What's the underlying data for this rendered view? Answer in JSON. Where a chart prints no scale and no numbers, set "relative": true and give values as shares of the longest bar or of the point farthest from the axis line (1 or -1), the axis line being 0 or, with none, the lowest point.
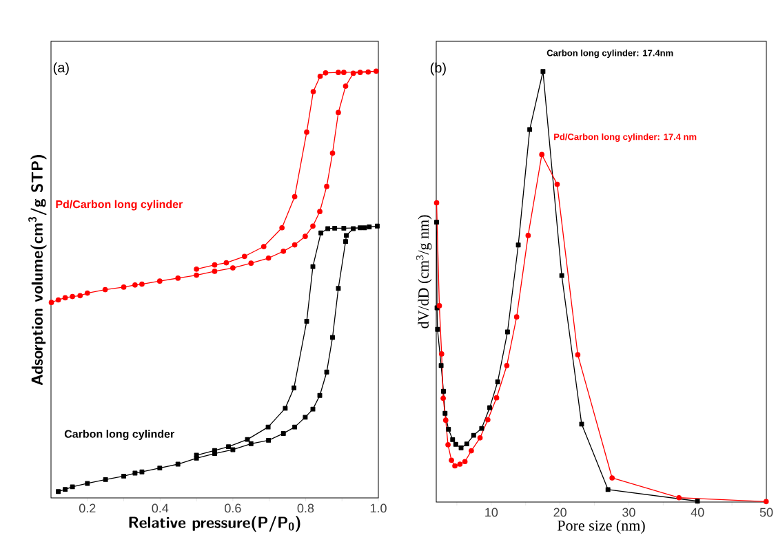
{
  "chart_data": [
    {
      "type": "line",
      "relative": true,
      "xlabel": "Relative pressure(P/P$_{0}$)",
      "ylabel": "Adsorption volume(cm$^{3}$/g STP)",
      "annotations": [
        "(a)"
      ],
      "xlim": [
        0.1,
        1.0
      ],
      "xticks": [
        0.2,
        {
          "value": 0.3,
          "label": null
        },
        0.4,
        {
          "value": 0.5,
          "label": null
        },
        0.6,
        {
          "value": 0.7,
          "label": null
        },
        0.8,
        {
          "value": 0.9,
          "label": null
        },
        {
          "value": 1.0,
          "label": "1.0"
        }
      ],
      "tick_labels": "x",
      "legend": false,
      "grid": false,
      "series": [
        {
          "name": "Carbon long cylinder",
          "color": "#000000",
          "marker": "square",
          "x": [
            0.12,
            0.139,
            0.159,
            0.2,
            0.25,
            0.3,
            0.331,
            0.35,
            0.399,
            0.449,
            0.5,
            0.55,
            0.6,
            0.65,
            0.698,
            0.739,
            0.77,
            0.799,
            0.82,
            0.839,
            0.858,
            0.874,
            0.89,
            0.91,
            0.912,
            0.931,
            0.95,
            0.975,
            0.997,
            0.962,
            0.905,
            0.88,
            0.861,
            0.842,
            0.82,
            0.803,
            0.768,
            0.744,
            0.697,
            0.64,
            0.588,
            0.55,
            0.5
          ],
          "values": [
            0.015,
            0.02,
            0.026,
            0.034,
            0.043,
            0.051,
            0.058,
            0.061,
            0.07,
            0.079,
            0.093,
            0.104,
            0.113,
            0.127,
            0.135,
            0.151,
            0.166,
            0.189,
            0.208,
            0.24,
            0.295,
            0.376,
            0.491,
            0.601,
            0.615,
            0.631,
            0.633,
            0.635,
            0.637,
            0.633,
            0.632,
            0.632,
            0.631,
            0.621,
            0.542,
            0.414,
            0.258,
            0.21,
            0.166,
            0.137,
            0.12,
            0.111,
            0.1
          ]
        },
        {
          "name": "Pd/Carbon long cylinder",
          "color": "#ff0000",
          "marker": "circle",
          "x": [
            0.101,
            0.12,
            0.139,
            0.159,
            0.18,
            0.2,
            0.249,
            0.3,
            0.331,
            0.35,
            0.399,
            0.449,
            0.5,
            0.55,
            0.6,
            0.65,
            0.698,
            0.739,
            0.77,
            0.799,
            0.82,
            0.839,
            0.858,
            0.874,
            0.89,
            0.91,
            0.931,
            0.95,
            0.972,
            0.994,
            0.905,
            0.89,
            0.855,
            0.84,
            0.821,
            0.803,
            0.77,
            0.735,
            0.685,
            0.632,
            0.582,
            0.55,
            0.5
          ],
          "values": [
            0.458,
            0.464,
            0.469,
            0.472,
            0.474,
            0.48,
            0.488,
            0.494,
            0.499,
            0.501,
            0.508,
            0.515,
            0.522,
            0.531,
            0.539,
            0.55,
            0.562,
            0.578,
            0.593,
            0.613,
            0.637,
            0.671,
            0.73,
            0.808,
            0.903,
            0.965,
            0.995,
            0.997,
            0.998,
            1.0,
            0.997,
            0.997,
            0.996,
            0.988,
            0.952,
            0.857,
            0.706,
            0.633,
            0.589,
            0.566,
            0.551,
            0.546,
            0.536
          ]
        }
      ]
    },
    {
      "type": "line",
      "relative": true,
      "xlabel": "Pore size (nm)",
      "ylabel": "dV/dD (cm$^{3}$/g nm)",
      "annotations": [
        "(b)"
      ],
      "xlim": [
        2,
        50
      ],
      "xticks": [
        {
          "value": 5,
          "label": null
        },
        10,
        {
          "value": 15,
          "label": null
        },
        20,
        {
          "value": 25,
          "label": null
        },
        30,
        {
          "value": 35,
          "label": null
        },
        40,
        {
          "value": 45,
          "label": null
        },
        50
      ],
      "tick_labels": "x",
      "legend": false,
      "grid": false,
      "series": [
        {
          "name": "Carbon long cylinder: 17.4nm",
          "color": "#000000",
          "marker": "square",
          "x": [
            2.05,
            2.11,
            2.18,
            2.71,
            3.05,
            3.28,
            3.78,
            4.38,
            4.84,
            5.61,
            6.44,
            7.44,
            8.6,
            9.77,
            10.93,
            12.36,
            13.93,
            15.59,
            17.52,
            20.25,
            23.14,
            26.97,
            39.98
          ],
          "values": [
            0.65,
            0.451,
            0.401,
            0.317,
            0.257,
            0.206,
            0.169,
            0.145,
            0.134,
            0.126,
            0.135,
            0.155,
            0.171,
            0.219,
            0.279,
            0.395,
            0.597,
            0.865,
            1.0,
            0.526,
            0.181,
            0.029,
            0.002
          ]
        },
        {
          "name": "Pd/Carbon long cylinder: 17.4 nm",
          "color": "#ff0000",
          "marker": "circle",
          "x": [
            2.05,
            2.45,
            2.78,
            3.01,
            3.38,
            3.71,
            4.21,
            4.71,
            5.44,
            6.17,
            7.1,
            8.37,
            9.5,
            10.77,
            12.26,
            13.69,
            15.36,
            17.35,
            19.58,
            22.58,
            27.57,
            37.29,
            49.97
          ],
          "values": [
            0.695,
            0.456,
            0.344,
            0.241,
            0.19,
            0.133,
            0.097,
            0.084,
            0.088,
            0.094,
            0.119,
            0.149,
            0.191,
            0.242,
            0.317,
            0.43,
            0.619,
            0.807,
            0.738,
            0.342,
            0.056,
            0.01,
            0.001
          ]
        }
      ]
    }
  ]
}
